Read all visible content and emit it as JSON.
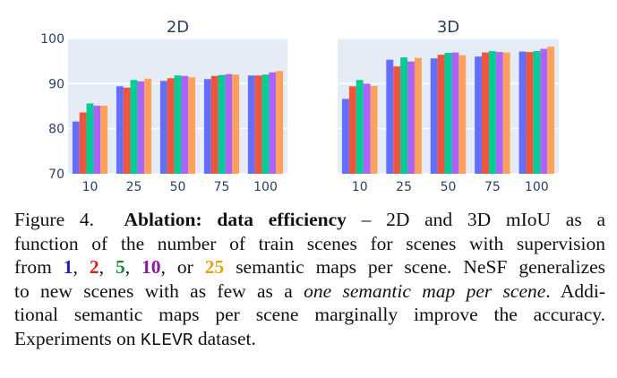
{
  "chart_data": [
    {
      "type": "bar",
      "title": "2D",
      "categories": [
        "10",
        "25",
        "50",
        "75",
        "100"
      ],
      "ylim": [
        70,
        100
      ],
      "yticks": [
        "70",
        "80",
        "90",
        "100"
      ],
      "grid": true,
      "series": [
        {
          "color": "#636efa",
          "values": [
            81.6,
            89.4,
            90.6,
            91.0,
            91.8
          ]
        },
        {
          "color": "#ef553b",
          "values": [
            83.6,
            89.1,
            91.2,
            91.7,
            91.8
          ]
        },
        {
          "color": "#00cc96",
          "values": [
            85.6,
            90.8,
            91.8,
            91.9,
            92.0
          ]
        },
        {
          "color": "#ab63fa",
          "values": [
            85.1,
            90.5,
            91.7,
            92.1,
            92.5
          ]
        },
        {
          "color": "#ffa15a",
          "values": [
            85.1,
            91.1,
            91.4,
            92.0,
            92.8
          ]
        }
      ]
    },
    {
      "type": "bar",
      "title": "3D",
      "categories": [
        "10",
        "25",
        "50",
        "75",
        "100"
      ],
      "ylim": [
        70,
        100
      ],
      "yticks": [
        "70",
        "80",
        "90",
        "100"
      ],
      "grid": true,
      "series": [
        {
          "color": "#636efa",
          "values": [
            86.6,
            95.3,
            95.6,
            96.0,
            97.1
          ]
        },
        {
          "color": "#ef553b",
          "values": [
            89.4,
            93.8,
            96.4,
            96.9,
            97.0
          ]
        },
        {
          "color": "#00cc96",
          "values": [
            90.8,
            95.8,
            96.8,
            97.2,
            97.2
          ]
        },
        {
          "color": "#ab63fa",
          "values": [
            90.0,
            94.9,
            96.9,
            97.0,
            97.7
          ]
        },
        {
          "color": "#ffa15a",
          "values": [
            89.5,
            95.7,
            96.3,
            96.9,
            98.2
          ]
        }
      ]
    }
  ],
  "caption": {
    "fig_label": "Figure 4.",
    "bold_title": "Ablation: data efficiency",
    "text_1": " – 2D and 3D mIoU as a",
    "line_2": "function of the number of train scenes for scenes with supervision",
    "from": "from ",
    "n1": "1",
    "n2": "2",
    "n5": "5",
    "n10": "10",
    "n25": "25",
    "comma": ", ",
    "comma_or": ", or ",
    "text_3b": " semantic maps per scene. NeSF generalizes",
    "text_4a": "to new scenes with as few as a ",
    "italic_phrase": "one semantic map per scene",
    "text_4b": ". Addi-",
    "line_5": "tional semantic maps per scene marginally improve the accuracy.",
    "text_6a": "Experiments on ",
    "dataset": "KLEVR",
    "text_6b": " dataset."
  }
}
